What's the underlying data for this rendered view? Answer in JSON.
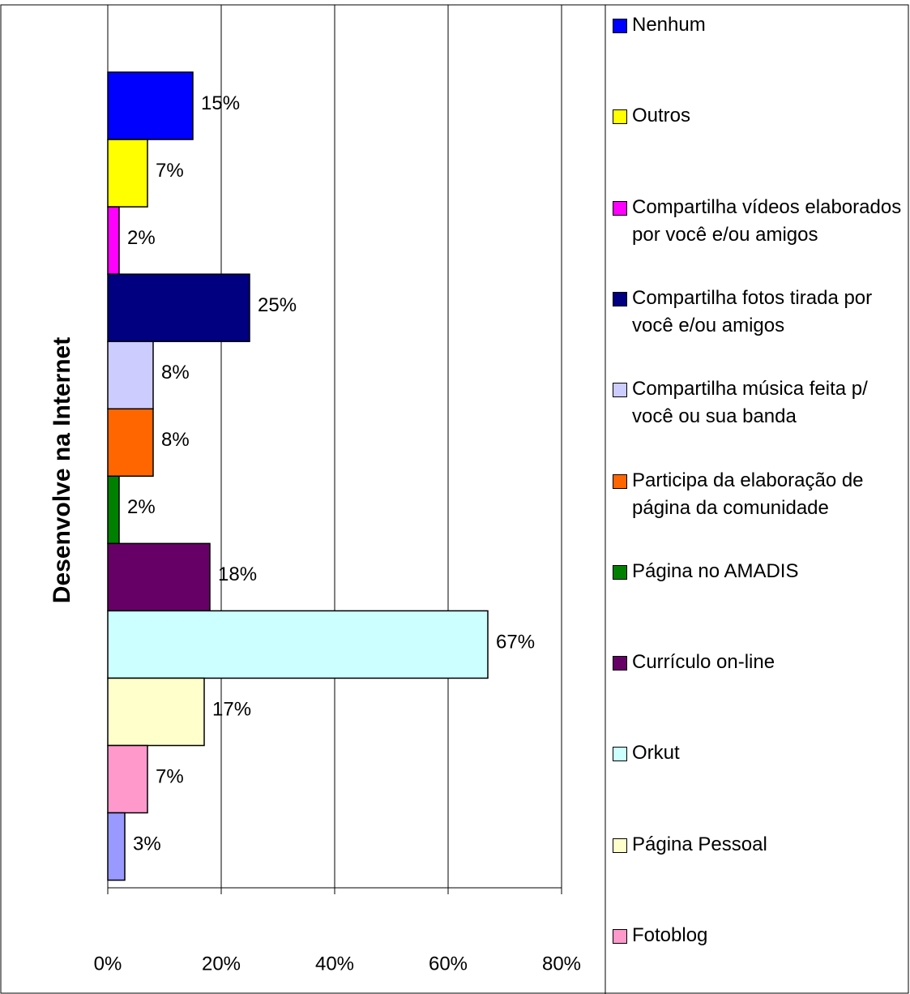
{
  "chart_data": {
    "type": "bar",
    "orientation": "horizontal",
    "y_axis_title": "Desenvolve na Internet",
    "categories": [
      "Nenhum",
      "Outros",
      "Compartilha vídeos elaborados por você e/ou amigos",
      "Compartilha fotos tirada por você e/ou amigos",
      "Compartilha música feita p/ você ou sua banda",
      "Participa da elaboração de página da comunidade",
      "Página no AMADIS",
      "Currículo on-line",
      "Orkut",
      "Página Pessoal",
      "Fotoblog",
      null
    ],
    "values": [
      15,
      7,
      2,
      25,
      8,
      8,
      2,
      18,
      67,
      17,
      7,
      3
    ],
    "value_labels": [
      "15%",
      "7%",
      "2%",
      "25%",
      "8%",
      "8%",
      "2%",
      "18%",
      "67%",
      "17%",
      "7%",
      "3%"
    ],
    "colors": [
      "#0000ff",
      "#ffff00",
      "#ff00ff",
      "#000080",
      "#ccccff",
      "#ff6600",
      "#008000",
      "#660066",
      "#ccffff",
      "#ffffcc",
      "#ff99cc",
      "#9999ff"
    ],
    "xlim": [
      0,
      80
    ],
    "xticks": [
      {
        "value": 0,
        "label": "0%"
      },
      {
        "value": 20,
        "label": "20%"
      },
      {
        "value": 40,
        "label": "40%"
      },
      {
        "value": 60,
        "label": "60%"
      },
      {
        "value": 80,
        "label": "80%"
      }
    ],
    "grid": true,
    "legend": "right"
  }
}
